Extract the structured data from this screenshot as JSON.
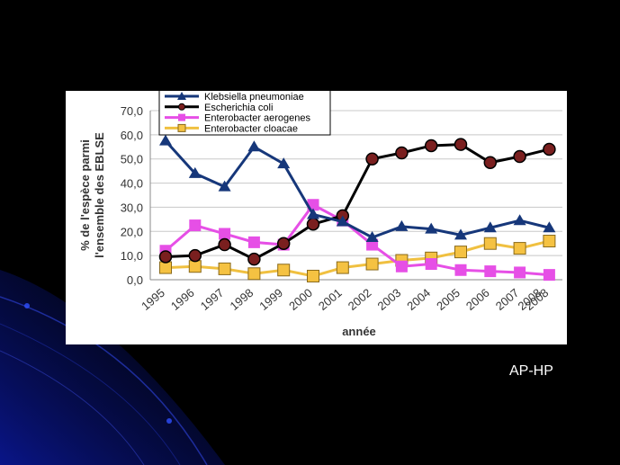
{
  "slide": {
    "footer_text": "AP-HP",
    "accent_color": "#0b1a8c"
  },
  "chart_data": {
    "type": "line",
    "title": "",
    "xlabel": "année",
    "ylabel_lines": [
      "% de l'espèce parmi",
      "l'ensemble des EBLSE"
    ],
    "ylim": [
      0,
      70
    ],
    "yticks": [
      "0,0",
      "10,0",
      "20,0",
      "30,0",
      "40,0",
      "50,0",
      "60,0",
      "70,0"
    ],
    "ytick_values": [
      0,
      10,
      20,
      30,
      40,
      50,
      60,
      70
    ],
    "categories": [
      "1995",
      "1996",
      "1997",
      "1998",
      "1999",
      "2000",
      "2001",
      "2002",
      "2003",
      "2004",
      "2005",
      "2006",
      "2007",
      "2008"
    ],
    "extra_tick_label": "2008",
    "grid": "horizontal",
    "legend_position": "top-left",
    "series": [
      {
        "name": "Klebsiella pneumoniae",
        "color": "#16377a",
        "marker": "triangle",
        "values": [
          57.5,
          44.0,
          38.5,
          55.0,
          48.0,
          27.0,
          24.0,
          17.5,
          22.0,
          21.0,
          18.5,
          21.5,
          24.5,
          21.5
        ]
      },
      {
        "name": "Escherichia coli",
        "color": "#000000",
        "marker": "circle",
        "marker_fill": "#7a1f1f",
        "values": [
          9.5,
          10.0,
          14.5,
          8.5,
          15.0,
          23.0,
          26.5,
          50.0,
          52.5,
          55.5,
          56.0,
          48.5,
          51.0,
          54.0
        ]
      },
      {
        "name": "Enterobacter aerogenes",
        "color": "#e64fe6",
        "marker": "square",
        "values": [
          12.0,
          22.5,
          19.0,
          15.5,
          14.5,
          31.0,
          24.5,
          14.5,
          5.5,
          6.5,
          4.0,
          3.5,
          3.0,
          2.0
        ]
      },
      {
        "name": "Enterobacter cloacae",
        "color": "#f0c040",
        "marker": "square-outline",
        "marker_fill": "#f5c242",
        "values": [
          5.0,
          5.5,
          4.5,
          2.5,
          4.0,
          1.5,
          5.0,
          6.5,
          8.0,
          9.0,
          11.5,
          15.0,
          13.0,
          16.0
        ]
      }
    ]
  }
}
